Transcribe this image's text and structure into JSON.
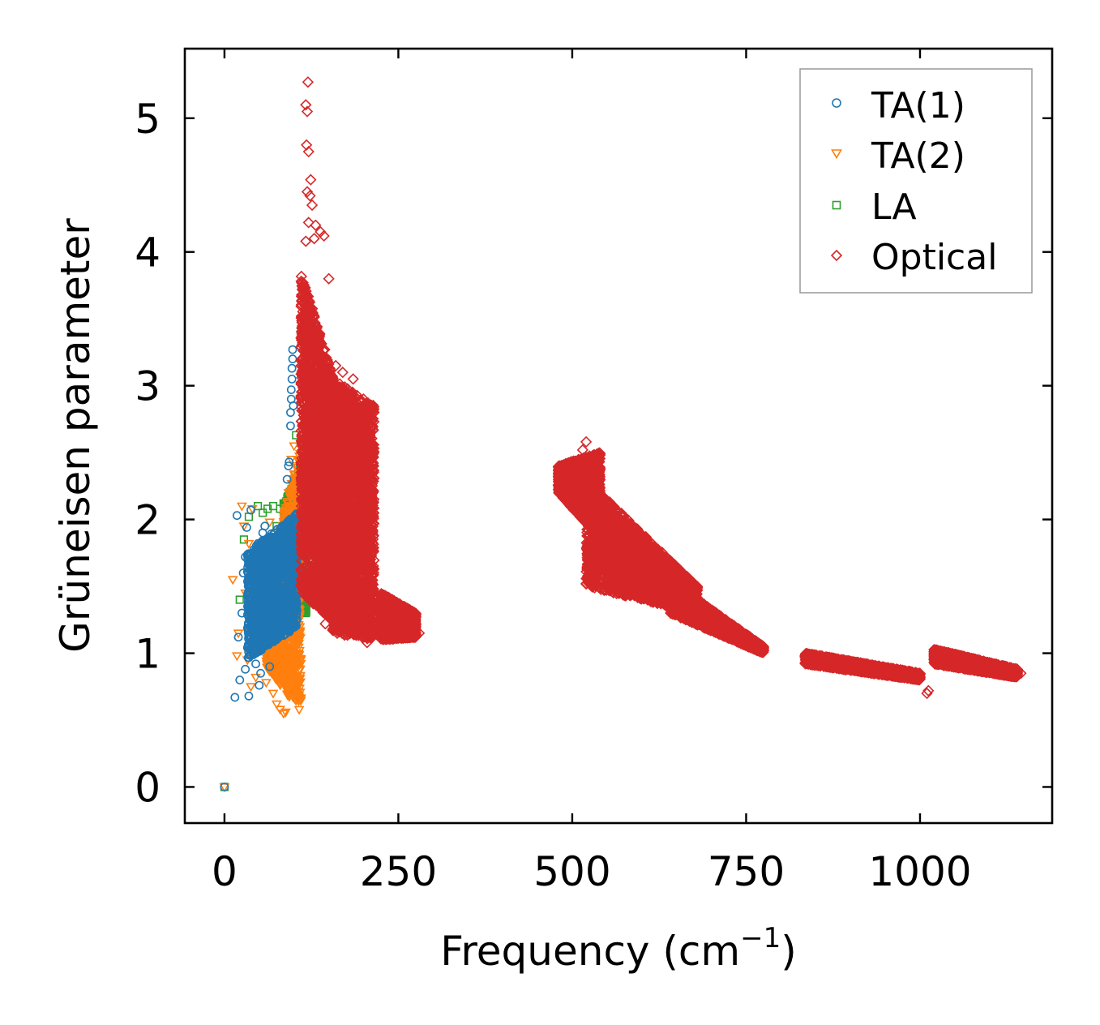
{
  "chart_data": {
    "type": "scatter",
    "xlabel": "Frequency (cm",
    "xlabel_sup": "−1",
    "xlabel_close": ")",
    "ylabel": "Grüneisen parameter",
    "xlim": [
      -57,
      1190
    ],
    "ylim": [
      -0.27,
      5.52
    ],
    "xticks": [
      0,
      250,
      500,
      750,
      1000
    ],
    "xtick_labels": [
      "0",
      "250",
      "500",
      "750",
      "1000"
    ],
    "yticks": [
      0,
      1,
      2,
      3,
      4,
      5
    ],
    "ytick_labels": [
      "0",
      "1",
      "2",
      "3",
      "4",
      "5"
    ],
    "legend_position": "top-right",
    "series": [
      {
        "name": "TA(1)",
        "marker": "circle",
        "color": "#1f77b4",
        "filled_clusters": [
          {
            "x_range": [
              33,
              105
            ],
            "y_top": [
              1.75,
              2.05
            ],
            "y_bottom": [
              0.95,
              1.2
            ]
          }
        ],
        "points": [
          [
            0,
            0
          ],
          [
            15,
            0.67
          ],
          [
            18,
            2.03
          ],
          [
            20,
            1.12
          ],
          [
            22,
            0.8
          ],
          [
            25,
            1.3
          ],
          [
            27,
            1.6
          ],
          [
            30,
            1.72
          ],
          [
            30,
            0.88
          ],
          [
            32,
            1.94
          ],
          [
            35,
            0.68
          ],
          [
            37,
            1.55
          ],
          [
            38,
            2.07
          ],
          [
            40,
            1.05
          ],
          [
            45,
            0.92
          ],
          [
            48,
            1.82
          ],
          [
            50,
            0.76
          ],
          [
            52,
            0.85
          ],
          [
            55,
            1.9
          ],
          [
            58,
            1.95
          ],
          [
            60,
            1.45
          ],
          [
            62,
            1.1
          ],
          [
            65,
            0.9
          ],
          [
            70,
            1.6
          ],
          [
            90,
            2.3
          ],
          [
            92,
            2.4
          ],
          [
            93,
            2.43
          ],
          [
            95,
            2.7
          ],
          [
            95,
            2.8
          ],
          [
            96,
            2.9
          ],
          [
            96,
            2.97
          ],
          [
            97,
            3.05
          ],
          [
            97,
            3.13
          ],
          [
            98,
            3.2
          ],
          [
            98,
            3.27
          ],
          [
            99,
            2.85
          ],
          [
            99,
            2.0
          ],
          [
            100,
            1.9
          ]
        ]
      },
      {
        "name": "TA(2)",
        "marker": "triangle-down",
        "color": "#ff7f0e",
        "filled_clusters": [
          {
            "x_range": [
              60,
              110
            ],
            "y_top": [
              1.5,
              2.55
            ],
            "y_bottom": [
              0.9,
              0.55
            ]
          }
        ],
        "points": [
          [
            0,
            0
          ],
          [
            12,
            1.55
          ],
          [
            18,
            0.98
          ],
          [
            20,
            1.15
          ],
          [
            25,
            2.1
          ],
          [
            28,
            1.95
          ],
          [
            30,
            1.45
          ],
          [
            33,
            0.95
          ],
          [
            35,
            1.82
          ],
          [
            38,
            0.75
          ],
          [
            40,
            2.08
          ],
          [
            45,
            0.82
          ],
          [
            50,
            1.72
          ],
          [
            55,
            1.3
          ],
          [
            60,
            0.78
          ],
          [
            65,
            1.98
          ],
          [
            70,
            0.7
          ],
          [
            75,
            0.62
          ],
          [
            80,
            0.58
          ],
          [
            85,
            0.55
          ],
          [
            88,
            0.56
          ],
          [
            92,
            2.2
          ],
          [
            96,
            2.45
          ],
          [
            100,
            2.55
          ],
          [
            102,
            2.2
          ]
        ]
      },
      {
        "name": "LA",
        "marker": "square",
        "color": "#2ca02c",
        "filled_clusters": [
          {
            "x_range": [
              85,
              118
            ],
            "y_top": [
              2.1,
              2.5
            ],
            "y_bottom": [
              1.5,
              1.3
            ]
          }
        ],
        "points": [
          [
            0,
            0
          ],
          [
            22,
            1.4
          ],
          [
            28,
            1.85
          ],
          [
            35,
            2.02
          ],
          [
            40,
            1.6
          ],
          [
            48,
            2.1
          ],
          [
            55,
            2.05
          ],
          [
            62,
            2.08
          ],
          [
            70,
            2.1
          ],
          [
            75,
            1.95
          ],
          [
            80,
            2.08
          ],
          [
            85,
            2.12
          ],
          [
            90,
            2.05
          ],
          [
            95,
            2.15
          ],
          [
            100,
            2.3
          ],
          [
            103,
            2.63
          ],
          [
            108,
            2.2
          ],
          [
            112,
            1.9
          ],
          [
            115,
            1.6
          ],
          [
            116,
            1.45
          ],
          [
            117,
            1.3
          ]
        ]
      },
      {
        "name": "Optical",
        "marker": "diamond",
        "color": "#d62728",
        "filled_clusters": [
          {
            "x_range": [
              110,
              160
            ],
            "y_top": [
              3.85,
              3.0
            ],
            "y_bottom": [
              1.45,
              1.22
            ]
          },
          {
            "x_range": [
              155,
              215
            ],
            "y_top": [
              3.05,
              2.85
            ],
            "y_bottom": [
              1.15,
              1.1
            ]
          },
          {
            "x_range": [
              225,
              275
            ],
            "y_top": [
              1.45,
              1.3
            ],
            "y_bottom": [
              1.1,
              1.12
            ]
          },
          {
            "x_range": [
              480,
              540
            ],
            "y_top": [
              2.4,
              2.5
            ],
            "y_bottom": [
              2.2,
              1.85
            ]
          },
          {
            "x_range": [
              520,
              680
            ],
            "y_top": [
              2.3,
              1.5
            ],
            "y_bottom": [
              1.5,
              1.3
            ]
          },
          {
            "x_range": [
              640,
              775
            ],
            "y_top": [
              1.55,
              1.05
            ],
            "y_bottom": [
              1.3,
              1.0
            ]
          },
          {
            "x_range": [
              835,
              1000
            ],
            "y_top": [
              1.0,
              0.85
            ],
            "y_bottom": [
              0.92,
              0.8
            ]
          },
          {
            "x_range": [
              1020,
              1140
            ],
            "y_top": [
              1.03,
              0.88
            ],
            "y_bottom": [
              0.92,
              0.82
            ]
          }
        ],
        "points": [
          [
            120,
            5.27
          ],
          [
            117,
            5.1
          ],
          [
            119,
            5.05
          ],
          [
            118,
            4.8
          ],
          [
            121,
            4.75
          ],
          [
            124,
            4.54
          ],
          [
            119,
            4.45
          ],
          [
            123,
            4.42
          ],
          [
            126,
            4.35
          ],
          [
            121,
            4.22
          ],
          [
            131,
            4.2
          ],
          [
            138,
            4.15
          ],
          [
            117,
            4.08
          ],
          [
            129,
            4.1
          ],
          [
            143,
            4.12
          ],
          [
            150,
            3.8
          ],
          [
            160,
            3.15
          ],
          [
            170,
            3.1
          ],
          [
            185,
            3.05
          ],
          [
            200,
            2.8
          ],
          [
            145,
            1.22
          ],
          [
            160,
            1.18
          ],
          [
            175,
            1.2
          ],
          [
            205,
            1.08
          ],
          [
            225,
            1.12
          ],
          [
            255,
            1.12
          ],
          [
            280,
            1.15
          ],
          [
            520,
            2.58
          ],
          [
            515,
            2.52
          ],
          [
            640,
            1.6
          ],
          [
            665,
            1.5
          ],
          [
            680,
            1.38
          ],
          [
            700,
            1.3
          ],
          [
            735,
            1.15
          ],
          [
            760,
            1.05
          ],
          [
            775,
            1.02
          ],
          [
            1010,
            0.7
          ],
          [
            1012,
            0.72
          ],
          [
            1000,
            0.82
          ],
          [
            1145,
            0.85
          ]
        ]
      }
    ]
  }
}
